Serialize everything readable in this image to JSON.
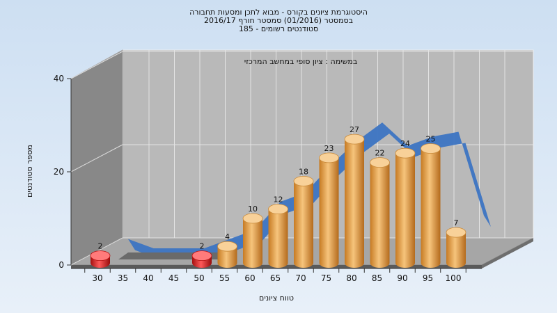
{
  "chart_data": {
    "type": "bar",
    "title_lines": [
      "היסטוגרמת ציונים בקורס - מבוא לתכן ומסעות תחבורה",
      "בסמסטר (01/2016) סמסטר חורף 2016/17",
      "185 - סטודנטים רשומים"
    ],
    "subtitle": "במשימה : ציון סופי במחשב המרכזי",
    "xlabel": "טווח ציונים",
    "ylabel": "מספר סטודנטים",
    "x_ticks": [
      "30",
      "35",
      "40",
      "45",
      "50",
      "55",
      "60",
      "65",
      "70",
      "75",
      "80",
      "85",
      "90",
      "95",
      "100"
    ],
    "y_ticks": [
      "0",
      "20",
      "40"
    ],
    "ylim": [
      0,
      40
    ],
    "categories": [
      "30",
      "35",
      "40",
      "45",
      "50",
      "55",
      "60",
      "65",
      "70",
      "75",
      "80",
      "85",
      "90",
      "95",
      "100"
    ],
    "values": [
      2,
      0,
      0,
      0,
      2,
      4,
      10,
      12,
      18,
      23,
      27,
      22,
      24,
      25,
      7
    ],
    "value_labels": [
      "2",
      "",
      "",
      "",
      "2",
      "4",
      "10",
      "12",
      "18",
      "23",
      "27",
      "22",
      "24",
      "25",
      "7"
    ],
    "bar_colors": [
      "#d51a1a",
      "#d51a1a",
      "#d51a1a",
      "#d51a1a",
      "#d51a1a",
      "#e29a3c",
      "#e29a3c",
      "#e29a3c",
      "#e29a3c",
      "#e29a3c",
      "#e29a3c",
      "#e29a3c",
      "#e29a3c",
      "#e29a3c",
      "#e29a3c"
    ],
    "ribbon_color": "#3c74c2",
    "grid": true
  }
}
